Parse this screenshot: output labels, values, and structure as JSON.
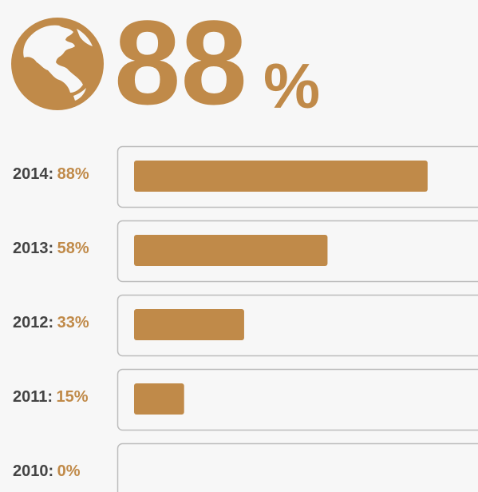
{
  "headline": {
    "number": "88",
    "unit": "%"
  },
  "chart_data": {
    "type": "bar",
    "orientation": "horizontal",
    "categories": [
      "2014:",
      "2013:",
      "2012:",
      "2011:",
      "2010:"
    ],
    "values": [
      88,
      58,
      33,
      15,
      0
    ],
    "value_labels": [
      "88%",
      "58%",
      "33%",
      "15%",
      "0%"
    ],
    "color": "#c08a49",
    "xlim": [
      0,
      100
    ]
  }
}
